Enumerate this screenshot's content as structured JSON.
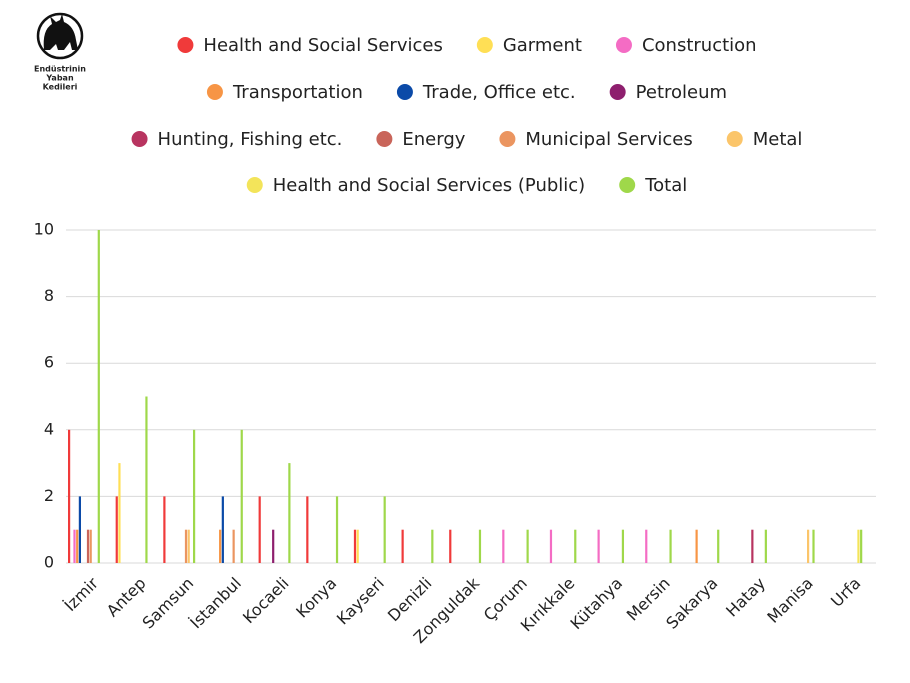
{
  "chart_data": {
    "type": "bar",
    "logo_text": [
      "Endüstrinin",
      "Yaban",
      "Kedileri"
    ],
    "categories": [
      "İzmir",
      "Antep",
      "Samsun",
      "İstanbul",
      "Kocaeli",
      "Konya",
      "Kayseri",
      "Denizli",
      "Zonguldak",
      "Çorum",
      "Kırıkkale",
      "Kütahya",
      "Mersin",
      "Sakarya",
      "Hatay",
      "Manisa",
      "Urfa"
    ],
    "series": [
      {
        "name": "Health and Social Services",
        "color": "#f03a3a",
        "values": [
          4,
          2,
          2,
          null,
          2,
          2,
          1,
          1,
          1,
          null,
          null,
          null,
          null,
          null,
          null,
          null,
          null
        ]
      },
      {
        "name": "Garment",
        "color": "#ffdf55",
        "values": [
          null,
          3,
          null,
          null,
          null,
          null,
          1,
          null,
          null,
          null,
          null,
          null,
          null,
          null,
          null,
          null,
          null
        ]
      },
      {
        "name": "Construction",
        "color": "#f46cc4",
        "values": [
          1,
          null,
          null,
          null,
          null,
          null,
          null,
          null,
          null,
          1,
          1,
          1,
          1,
          null,
          null,
          null,
          null
        ]
      },
      {
        "name": "Transportation",
        "color": "#f79545",
        "values": [
          1,
          null,
          null,
          1,
          null,
          null,
          null,
          null,
          null,
          null,
          null,
          null,
          null,
          1,
          null,
          null,
          null
        ]
      },
      {
        "name": "Trade, Office etc.",
        "color": "#0b4aa8",
        "values": [
          2,
          null,
          null,
          2,
          null,
          null,
          null,
          null,
          null,
          null,
          null,
          null,
          null,
          null,
          null,
          null,
          null
        ]
      },
      {
        "name": "Petroleum",
        "color": "#8e1f6e",
        "values": [
          null,
          null,
          null,
          null,
          1,
          null,
          null,
          null,
          null,
          null,
          null,
          null,
          null,
          null,
          null,
          null,
          null
        ]
      },
      {
        "name": "Hunting, Fishing etc.",
        "color": "#b83460",
        "values": [
          null,
          null,
          null,
          null,
          null,
          null,
          null,
          null,
          null,
          null,
          null,
          null,
          null,
          null,
          1,
          null,
          null
        ]
      },
      {
        "name": "Energy",
        "color": "#c9655a",
        "values": [
          1,
          null,
          null,
          null,
          null,
          null,
          null,
          null,
          null,
          null,
          null,
          null,
          null,
          null,
          null,
          null,
          null
        ]
      },
      {
        "name": "Municipal Services",
        "color": "#eb9560",
        "values": [
          1,
          null,
          1,
          1,
          null,
          null,
          null,
          null,
          null,
          null,
          null,
          null,
          null,
          null,
          null,
          null,
          null
        ]
      },
      {
        "name": "Metal",
        "color": "#fbc56a",
        "values": [
          null,
          null,
          1,
          null,
          null,
          null,
          null,
          null,
          null,
          null,
          null,
          null,
          null,
          null,
          null,
          1,
          null
        ]
      },
      {
        "name": "Health and Social Services (Public)",
        "color": "#f3e45a",
        "values": [
          null,
          null,
          null,
          null,
          null,
          null,
          null,
          null,
          null,
          null,
          null,
          null,
          null,
          null,
          null,
          null,
          1
        ]
      },
      {
        "name": "Total",
        "color": "#9fd84a",
        "values": [
          10,
          5,
          4,
          4,
          3,
          2,
          2,
          1,
          1,
          1,
          1,
          1,
          1,
          1,
          1,
          1,
          1
        ]
      }
    ],
    "ylim": [
      0,
      10
    ],
    "yticks": [
      0,
      2,
      4,
      6,
      8,
      10
    ],
    "grid": true
  }
}
